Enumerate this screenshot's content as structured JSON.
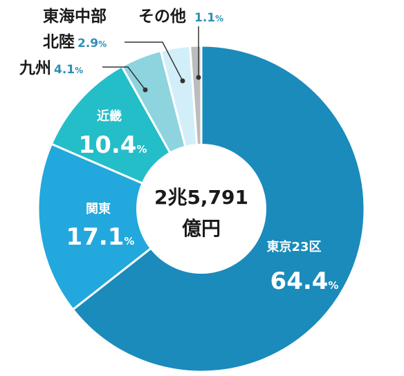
{
  "chart_data": {
    "type": "pie",
    "title": "",
    "center_label": {
      "line1": "2兆5,791",
      "line2": "億円"
    },
    "unit": "%",
    "slices": [
      {
        "name": "東京23区",
        "value": 64.4,
        "color": "#1a8bbb"
      },
      {
        "name": "関東",
        "value": 17.1,
        "color": "#22a8dd"
      },
      {
        "name": "近畿",
        "value": 10.4,
        "color": "#24bec9"
      },
      {
        "name": "九州",
        "value": 4.1,
        "color": "#8dd4df"
      },
      {
        "name": "北陸",
        "value": 2.9,
        "color": "#d2eef9"
      },
      {
        "name": "東海中部",
        "value": 0,
        "color": "#d2eef9"
      },
      {
        "name": "その他",
        "value": 1.1,
        "color": "#bcbcbc"
      }
    ]
  }
}
